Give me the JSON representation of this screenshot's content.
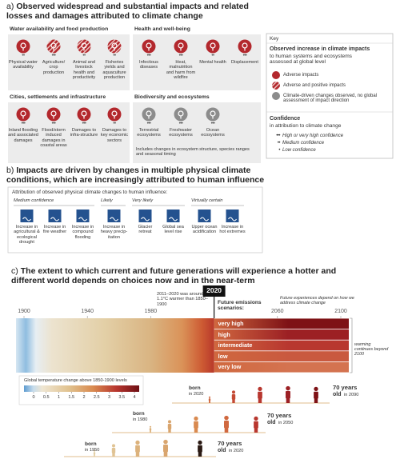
{
  "panel_a": {
    "label": "a)",
    "title": "Observed widespread and substantial impacts and related losses and damages attributed to climate change",
    "sections": [
      {
        "title": "Water availability and food production",
        "items": [
          {
            "label": "Physical water availability",
            "confidence": "••",
            "color": "#b3282d"
          },
          {
            "label": "Agriculture/ crop production",
            "confidence": "•••",
            "color": "#b3282d",
            "hatched": true
          },
          {
            "label": "Animal and livestock health and productivity",
            "confidence": "••",
            "color": "#b3282d",
            "hatched": true
          },
          {
            "label": "Fisheries yields and aquaculture production",
            "confidence": "••",
            "color": "#b3282d",
            "hatched": true
          }
        ]
      },
      {
        "title": "Health and well-being",
        "items": [
          {
            "label": "Infectious diseases",
            "confidence": "•••",
            "color": "#b3282d"
          },
          {
            "label": "Heat, malnutrition and harm from wildfire",
            "confidence": "•••",
            "color": "#b3282d"
          },
          {
            "label": "Mental health",
            "confidence": "••",
            "color": "#b3282d"
          },
          {
            "label": "Displacement",
            "confidence": "•••",
            "color": "#b3282d"
          }
        ]
      },
      {
        "title": "Cities, settlements and infrastructure",
        "items": [
          {
            "label": "Inland flooding and associated damages",
            "confidence": "•••",
            "color": "#b3282d"
          },
          {
            "label": "Flood/storm induced damages in coastal areas",
            "confidence": "•••",
            "color": "#b3282d"
          },
          {
            "label": "Damages to infra-structure",
            "confidence": "•••",
            "color": "#b3282d"
          },
          {
            "label": "Damages to key economic sectors",
            "confidence": "••",
            "color": "#b3282d"
          }
        ]
      },
      {
        "title": "Biodiversity and ecosystems",
        "items": [
          {
            "label": "Terrestrial ecosystems",
            "confidence": "•••",
            "color": "#8c8c8c"
          },
          {
            "label": "Freshwater ecosystems",
            "confidence": "•••",
            "color": "#8c8c8c"
          },
          {
            "label": "Ocean ecosystems",
            "confidence": "•••",
            "color": "#8c8c8c"
          }
        ],
        "note": "Includes changes in ecosystem structure, species ranges and seasonal timing"
      }
    ],
    "key": {
      "title": "Key",
      "heading": "Observed increase in climate impacts",
      "subheading": "to human systems and ecosystems assessed at global level",
      "entries": [
        {
          "label": "Adverse impacts",
          "color": "#b3282d"
        },
        {
          "label": "Adverse and positive impacts",
          "color": "#b3282d",
          "hatched": true
        },
        {
          "label": "Climate-driven changes observed, no global assessment of impact direction",
          "color": "#8c8c8c"
        }
      ],
      "confidence_heading": "Confidence",
      "confidence_subheading": "in attribution to climate change",
      "confidence_levels": [
        {
          "mark": "•••",
          "label": "High or very high confidence"
        },
        {
          "mark": "••",
          "label": "Medium confidence"
        },
        {
          "mark": "•",
          "label": "Low confidence"
        }
      ]
    }
  },
  "panel_b": {
    "label": "b)",
    "title": "Impacts are driven by changes in multiple physical climate conditions, which are increasingly attributed to human influence",
    "caption": "Attribution of observed physical climate changes to human influence:",
    "icon_color": "#24528f",
    "groups": [
      {
        "label": "Medium confidence",
        "items": [
          "Increase in agricultural & ecological drought",
          "Increase in fire weather",
          "Increase in compound flooding"
        ]
      },
      {
        "label": "Likely",
        "items": [
          "Increase in heavy precip-itation"
        ]
      },
      {
        "label": "Very likely",
        "items": [
          "Glacier retreat",
          "Global sea level rise"
        ]
      },
      {
        "label": "Virtually certain",
        "items": [
          "Upper ocean acidification",
          "Increase in hot extremes"
        ]
      }
    ]
  },
  "panel_c": {
    "label": "c)",
    "title": "The extent to which current and future generations will experience a hotter and different world depends on choices now and in the near-term",
    "year_ticks": [
      1900,
      1940,
      1980,
      2020,
      2060,
      2100
    ],
    "observed_note": "2011–2020 was around 1.1°C warmer than 1850–1900",
    "scenarios_heading": "Future emissions scenarios:",
    "future_note": "Future experiences depend on how we address climate change",
    "beyond_note": "warming continues beyond 2100",
    "scenarios": [
      {
        "name": "very high",
        "color": "#7e1216"
      },
      {
        "name": "high",
        "color": "#9c2024"
      },
      {
        "name": "intermediate",
        "color": "#b8372f"
      },
      {
        "name": "low",
        "color": "#c9593f"
      },
      {
        "name": "very low",
        "color": "#d47350"
      }
    ],
    "colorbar": {
      "title": "Global temperature change above 1850-1900 levels",
      "ticks": [
        0,
        0.5,
        1,
        1.5,
        2,
        2.5,
        3,
        3.5,
        4
      ]
    },
    "generations": [
      {
        "born": "born",
        "born_year": "in 2020",
        "age": "70 years",
        "old": "old",
        "old_year": "in 2090"
      },
      {
        "born": "born",
        "born_year": "in 1980",
        "age": "70 years",
        "old": "old",
        "old_year": "in 2050"
      },
      {
        "born": "born",
        "born_year": "in 1950",
        "age": "70 years",
        "old": "old",
        "old_year": "in 2020"
      }
    ]
  }
}
